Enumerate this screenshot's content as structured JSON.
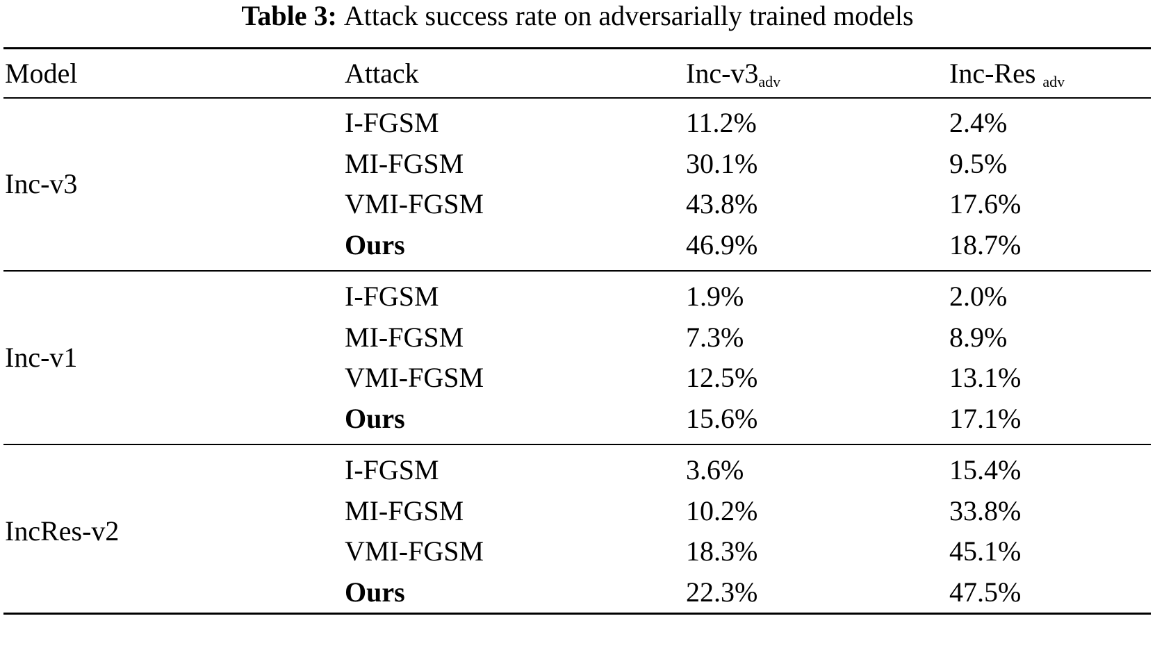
{
  "caption": {
    "label": "Table 3:",
    "text": "Attack success rate on adversarially trained models"
  },
  "table": {
    "headers": {
      "model": "Model",
      "attack": "Attack",
      "col1_main": "Inc-v3",
      "col1_sub": "adv",
      "col2_main": "Inc-Res ",
      "col2_sub": "adv"
    },
    "groups": [
      {
        "model": "Inc-v3",
        "rows": [
          {
            "attack": "I-FGSM",
            "bold": false,
            "inc_v3_adv": "11.2%",
            "inc_res_adv": "2.4%"
          },
          {
            "attack": "MI-FGSM",
            "bold": false,
            "inc_v3_adv": "30.1%",
            "inc_res_adv": "9.5%"
          },
          {
            "attack": "VMI-FGSM",
            "bold": false,
            "inc_v3_adv": "43.8%",
            "inc_res_adv": "17.6%"
          },
          {
            "attack": "Ours",
            "bold": true,
            "inc_v3_adv": "46.9%",
            "inc_res_adv": "18.7%"
          }
        ]
      },
      {
        "model": "Inc-v1",
        "rows": [
          {
            "attack": "I-FGSM",
            "bold": false,
            "inc_v3_adv": "1.9%",
            "inc_res_adv": "2.0%"
          },
          {
            "attack": "MI-FGSM",
            "bold": false,
            "inc_v3_adv": "7.3%",
            "inc_res_adv": "8.9%"
          },
          {
            "attack": "VMI-FGSM",
            "bold": false,
            "inc_v3_adv": "12.5%",
            "inc_res_adv": "13.1%"
          },
          {
            "attack": "Ours",
            "bold": true,
            "inc_v3_adv": "15.6%",
            "inc_res_adv": "17.1%"
          }
        ]
      },
      {
        "model": "IncRes-v2",
        "rows": [
          {
            "attack": "I-FGSM",
            "bold": false,
            "inc_v3_adv": "3.6%",
            "inc_res_adv": "15.4%"
          },
          {
            "attack": "MI-FGSM",
            "bold": false,
            "inc_v3_adv": "10.2%",
            "inc_res_adv": "33.8%"
          },
          {
            "attack": "VMI-FGSM",
            "bold": false,
            "inc_v3_adv": "18.3%",
            "inc_res_adv": "45.1%"
          },
          {
            "attack": "Ours",
            "bold": true,
            "inc_v3_adv": "22.3%",
            "inc_res_adv": "47.5%"
          }
        ]
      }
    ]
  }
}
